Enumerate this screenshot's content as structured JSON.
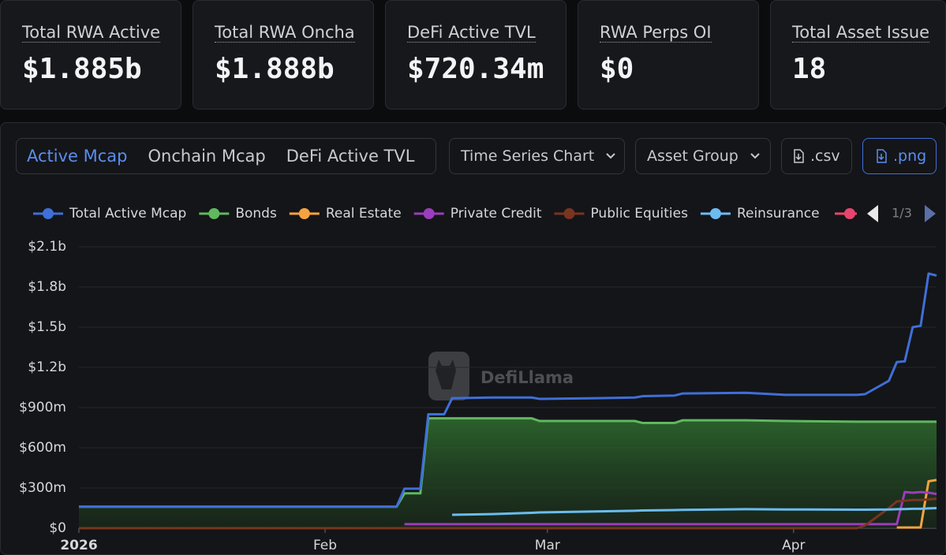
{
  "stats": [
    {
      "label": "Total RWA Active",
      "value": "$1.885b"
    },
    {
      "label": "Total RWA Oncha",
      "value": "$1.888b"
    },
    {
      "label": "DeFi Active TVL",
      "value": "$720.34m"
    },
    {
      "label": "RWA Perps OI",
      "value": "$0"
    },
    {
      "label": "Total Asset Issue",
      "value": "18"
    }
  ],
  "tabs": [
    "Active Mcap",
    "Onchain Mcap",
    "DeFi Active TVL"
  ],
  "controls": {
    "chart_type": "Time Series Chart",
    "group": "Asset Group",
    "csv": ".csv",
    "png": ".png"
  },
  "legend_page": "1/3",
  "watermark": "DefiLlama",
  "chart_data": {
    "type": "line",
    "x": [
      0,
      10,
      20,
      30,
      40,
      41,
      43,
      44,
      46,
      47,
      52,
      57,
      58,
      65,
      70,
      71,
      75,
      76,
      84,
      89,
      98,
      99,
      102,
      103,
      104,
      105,
      106,
      107,
      108
    ],
    "xlim": [
      0,
      108
    ],
    "xticks": [
      {
        "value": 0,
        "label": "2026"
      },
      {
        "value": 31,
        "label": "Feb"
      },
      {
        "value": 59,
        "label": "Mar"
      },
      {
        "value": 90,
        "label": "Apr"
      }
    ],
    "ylim": [
      0,
      2100
    ],
    "yticks": [
      {
        "value": 0,
        "label": "$0"
      },
      {
        "value": 300,
        "label": "$300m"
      },
      {
        "value": 600,
        "label": "$600m"
      },
      {
        "value": 900,
        "label": "$900m"
      },
      {
        "value": 1200,
        "label": "$1.2b"
      },
      {
        "value": 1500,
        "label": "$1.5b"
      },
      {
        "value": 1800,
        "label": "$1.8b"
      },
      {
        "value": 2100,
        "label": "$2.1b"
      }
    ],
    "grid": true,
    "series": [
      {
        "name": "Total Active Mcap",
        "color": "#3f6fd8",
        "values": [
          160,
          160,
          160,
          160,
          160,
          295,
          295,
          850,
          850,
          970,
          975,
          975,
          965,
          970,
          975,
          985,
          990,
          1005,
          1010,
          995,
          995,
          1000,
          1100,
          1240,
          1245,
          1500,
          1510,
          1900,
          1885
        ]
      },
      {
        "name": "Bonds",
        "color": "#5fb85f",
        "area": true,
        "values": [
          160,
          160,
          160,
          160,
          160,
          260,
          260,
          820,
          820,
          820,
          820,
          820,
          800,
          800,
          800,
          785,
          785,
          805,
          805,
          800,
          795,
          795,
          795,
          795,
          795,
          795,
          795,
          795,
          795
        ]
      },
      {
        "name": "Real Estate",
        "color": "#f5a340",
        "values": [
          null,
          null,
          null,
          null,
          null,
          null,
          null,
          null,
          null,
          null,
          null,
          null,
          null,
          null,
          null,
          null,
          null,
          null,
          null,
          null,
          null,
          null,
          null,
          5,
          5,
          5,
          5,
          350,
          360
        ]
      },
      {
        "name": "Private Credit",
        "color": "#9b3dbd",
        "values": [
          null,
          null,
          null,
          null,
          null,
          30,
          30,
          30,
          30,
          30,
          30,
          30,
          30,
          30,
          30,
          30,
          30,
          30,
          30,
          30,
          30,
          30,
          30,
          30,
          270,
          265,
          270,
          265,
          255
        ]
      },
      {
        "name": "Public Equities",
        "color": "#7a3420",
        "values": [
          0,
          0,
          0,
          0,
          0,
          0,
          0,
          0,
          0,
          0,
          0,
          0,
          0,
          0,
          0,
          0,
          0,
          0,
          0,
          0,
          0,
          20,
          150,
          200,
          205,
          210,
          210,
          215,
          220
        ]
      },
      {
        "name": "Reinsurance",
        "color": "#6bbcf0",
        "values": [
          null,
          null,
          null,
          null,
          null,
          null,
          null,
          null,
          null,
          100,
          105,
          115,
          118,
          125,
          130,
          132,
          135,
          137,
          142,
          140,
          138,
          138,
          140,
          142,
          143,
          145,
          145,
          148,
          150
        ]
      }
    ]
  }
}
